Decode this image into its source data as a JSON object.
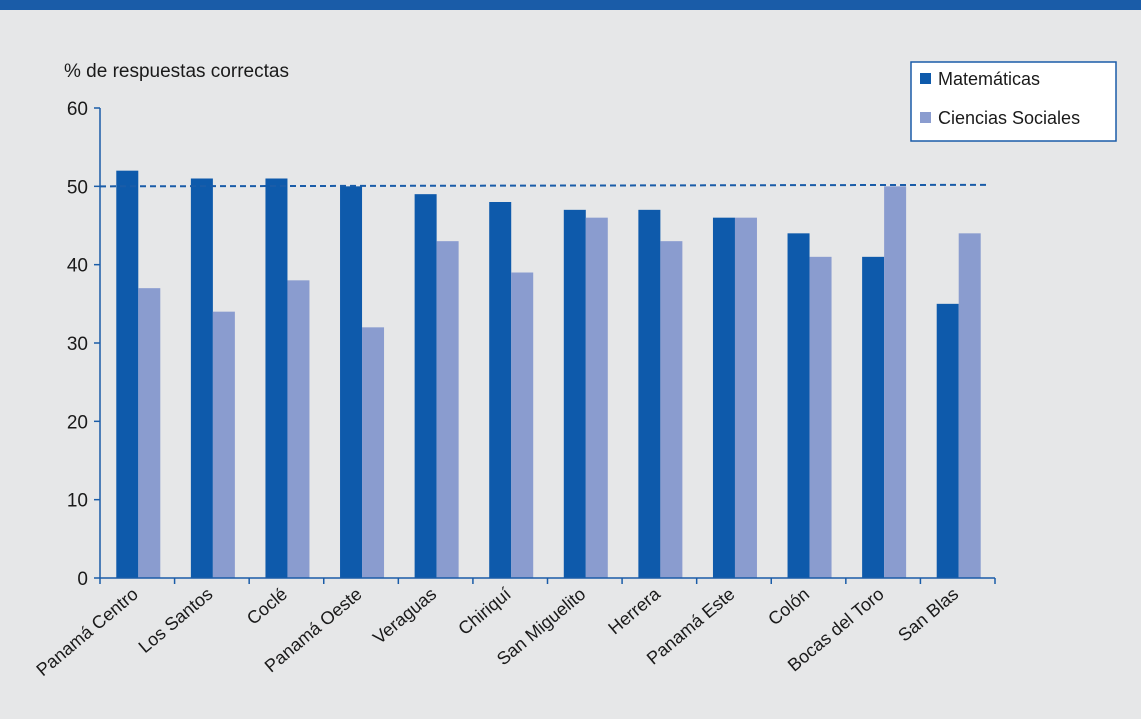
{
  "chart_data": {
    "type": "bar",
    "ylabel": "% de respuestas correctas",
    "xlabel": "",
    "ylim": [
      0,
      60
    ],
    "yticks": [
      0,
      10,
      20,
      30,
      40,
      50,
      60
    ],
    "categories": [
      "Panamá Centro",
      "Los Santos",
      "Coclé",
      "Panamá Oeste",
      "Veraguas",
      "Chiriquí",
      "San Miguelito",
      "Herrera",
      "Panamá Este",
      "Colón",
      "Bocas del Toro",
      "San Blas"
    ],
    "series": [
      {
        "name": "Matemáticas",
        "color": "#0e5aab",
        "values": [
          52,
          51,
          51,
          50,
          49,
          48,
          47,
          47,
          46,
          44,
          41,
          35
        ]
      },
      {
        "name": "Ciencias Sociales",
        "color": "#8a9ccf",
        "values": [
          37,
          34,
          38,
          32,
          43,
          39,
          46,
          43,
          46,
          41,
          50,
          44
        ]
      }
    ],
    "reference_line": {
      "value": 50,
      "style": "dashed",
      "color": "#1a5ca8"
    },
    "legend_position": "top-right",
    "grid": false,
    "axis_color": "#1a5ca8",
    "background": "#e6e7e8"
  }
}
